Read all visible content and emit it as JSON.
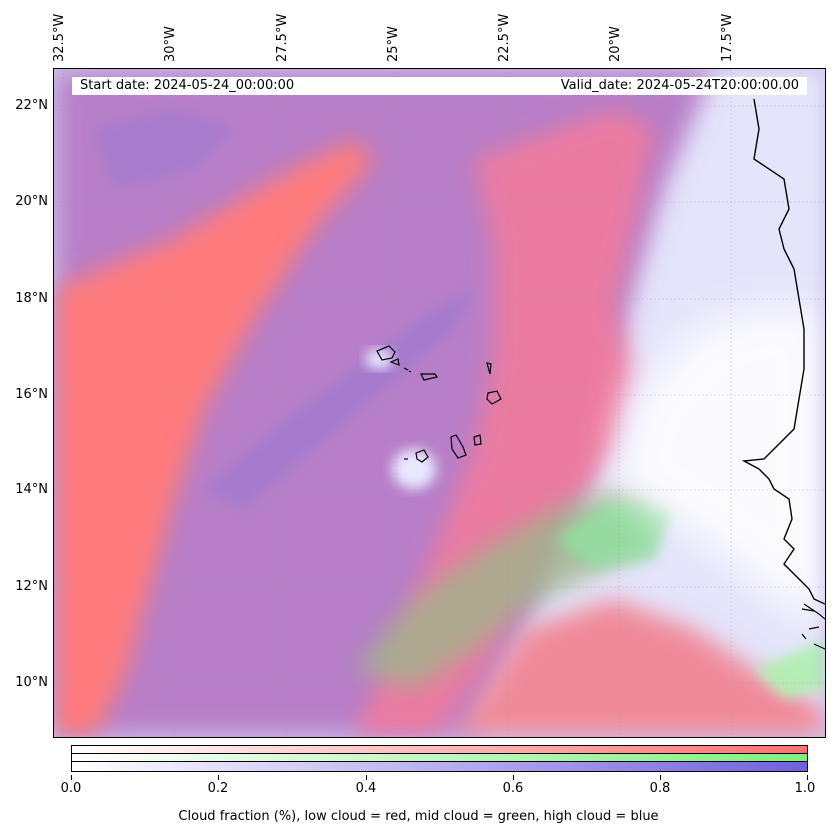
{
  "map": {
    "start_date": "Start date: 2024-05-24_00:00:00",
    "valid_date": "Valid_date: 2024-05-24T20:00:00.00",
    "lon_labels": [
      "32.5°W",
      "30°W",
      "27.5°W",
      "25°W",
      "22.5°W",
      "20°W",
      "17.5°W"
    ],
    "lat_labels": [
      "22°N",
      "20°N",
      "18°N",
      "16°N",
      "14°N",
      "12°N",
      "10°N"
    ],
    "lon_range_deg": [
      -32.5,
      -15.7
    ],
    "lat_range_deg": [
      8.8,
      22.8
    ],
    "gridlines": true,
    "gridline_style": "dotted-grey",
    "coastline_color": "#000000",
    "layers": {
      "low_cloud_color": "#ff7070",
      "mid_cloud_color": "#80f080",
      "high_cloud_color": "#7060e0"
    }
  },
  "colorbar": {
    "tick_labels": [
      "0.0",
      "0.2",
      "0.4",
      "0.6",
      "0.8",
      "1.0"
    ],
    "range": [
      0.0,
      1.0
    ],
    "label": "Cloud fraction (%), low cloud = red, mid cloud = green, high cloud = blue",
    "bands": [
      "red",
      "green",
      "blue"
    ]
  }
}
